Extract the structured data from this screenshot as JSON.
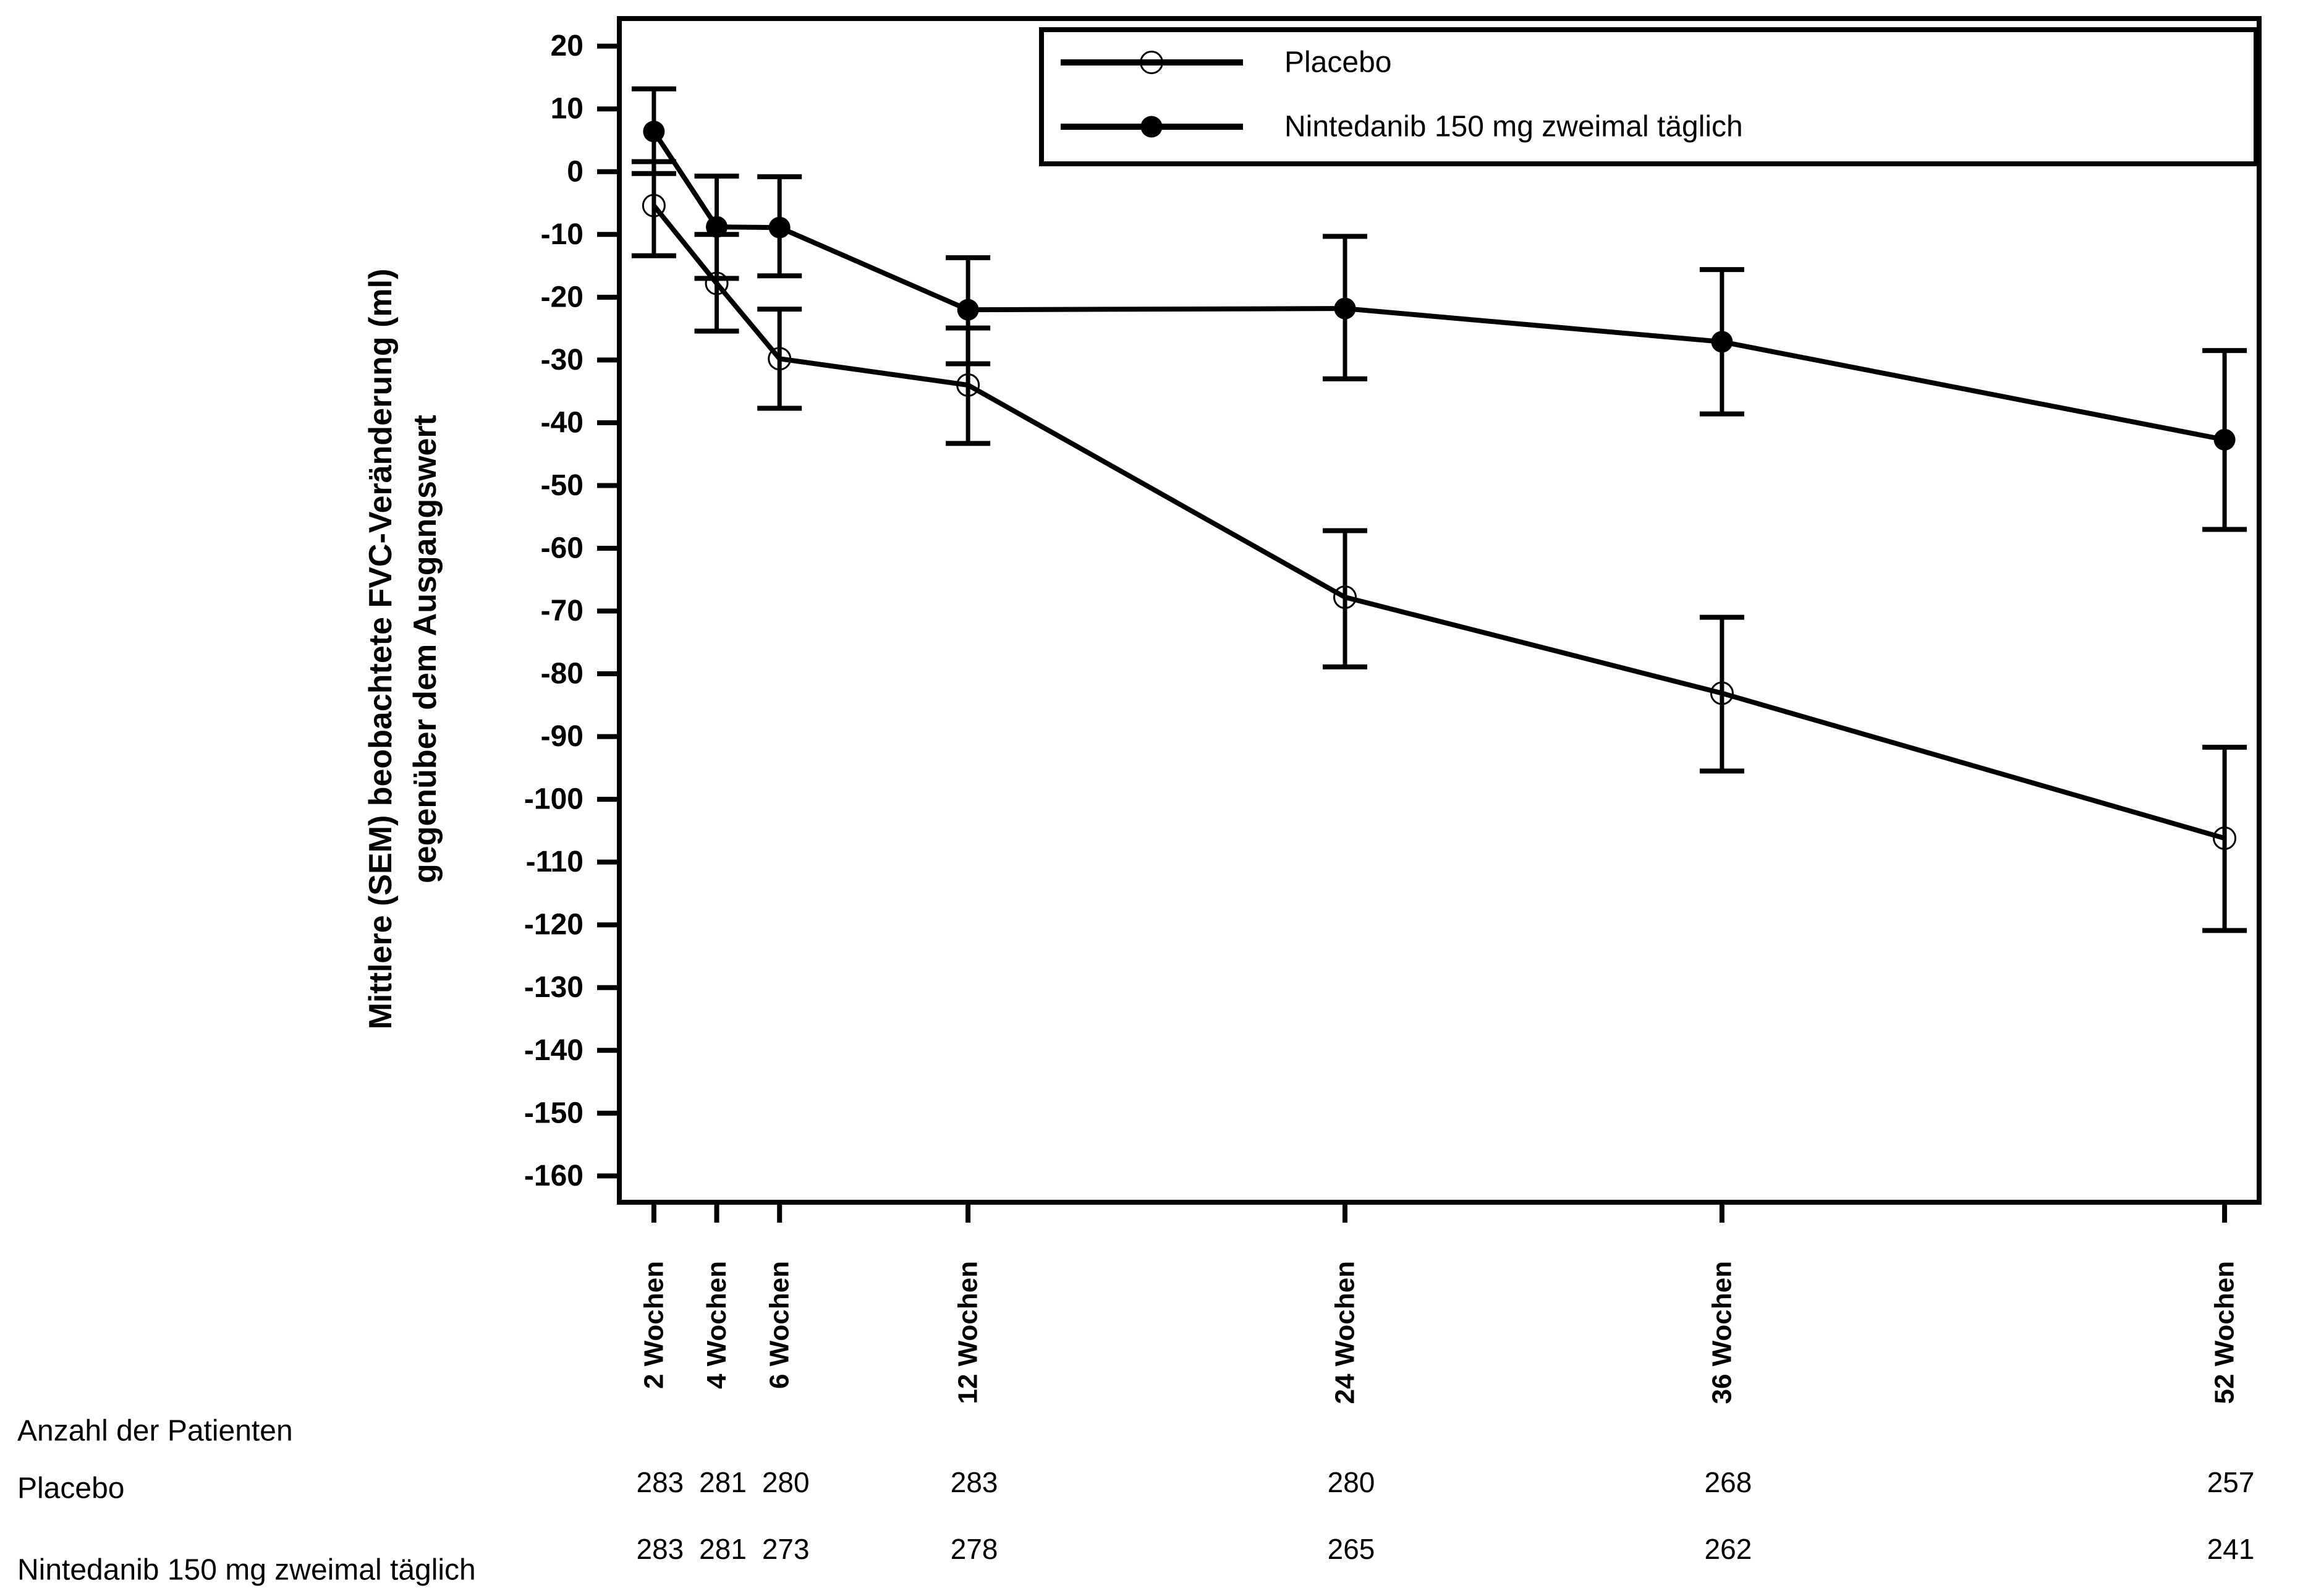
{
  "chart_data": {
    "type": "line",
    "title": "",
    "xlabel": "",
    "ylabel_line1": "Mittlere (SEM) beobachtete FVC-Veränderung (ml)",
    "ylabel_line2": "gegenüber dem Ausgangswert",
    "x_weeks": [
      2,
      4,
      6,
      12,
      24,
      36,
      52
    ],
    "categories": [
      "2 Wochen",
      "4 Wochen",
      "6 Wochen",
      "12 Wochen",
      "24 Wochen",
      "36 Wochen",
      "52 Wochen"
    ],
    "yticks": [
      20,
      10,
      0,
      -10,
      -20,
      -30,
      -40,
      -50,
      -60,
      -70,
      -80,
      -90,
      -100,
      -110,
      -120,
      -130,
      -140,
      -150,
      -160
    ],
    "ylim": [
      -164.2,
      24.4
    ],
    "xlim_weeks": [
      0.9,
      53.1
    ],
    "grid": false,
    "legend_position": "top-right-box",
    "series": [
      {
        "name": "Placebo",
        "marker": "open-circle",
        "mean": [
          -5.4,
          -17.8,
          -29.8,
          -34.0,
          -67.8,
          -83.1,
          -106.2
        ],
        "sem_lo": [
          -13.4,
          -25.4,
          -37.7,
          -43.3,
          -78.9,
          -95.5,
          -120.9
        ],
        "sem_hi": [
          1.6,
          -10.0,
          -21.9,
          -24.9,
          -57.2,
          -71.0,
          -91.7
        ]
      },
      {
        "name": "Nintedanib 150 mg zweimal täglich",
        "marker": "filled-circle",
        "mean": [
          6.4,
          -8.8,
          -8.9,
          -22.0,
          -21.8,
          -27.1,
          -42.7
        ],
        "sem_lo": [
          -0.3,
          -17.0,
          -16.6,
          -30.6,
          -33.0,
          -38.6,
          -57.0
        ],
        "sem_hi": [
          13.2,
          -0.7,
          -0.8,
          -13.7,
          -10.3,
          -15.6,
          -28.5
        ]
      }
    ],
    "legend": [
      "Placebo",
      "Nintedanib 150 mg zweimal täglich"
    ],
    "table": {
      "header": "Anzahl der Patienten",
      "rows": [
        {
          "label": "Placebo",
          "values": [
            283,
            281,
            280,
            283,
            280,
            268,
            257
          ]
        },
        {
          "label": "Nintedanib 150 mg zweimal täglich",
          "values": [
            283,
            281,
            273,
            278,
            265,
            262,
            241
          ]
        }
      ]
    },
    "colors": {
      "foreground": "#000000",
      "background": "#ffffff"
    }
  }
}
